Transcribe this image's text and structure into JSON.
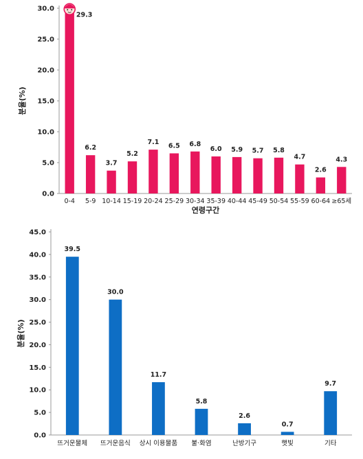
{
  "chart_data": [
    {
      "type": "bar",
      "xlabel": "연령구간",
      "ylabel": "분율(%)",
      "ylim": [
        0,
        30
      ],
      "yticks": [
        "0.0",
        "5.0",
        "10.0",
        "15.0",
        "20.0",
        "25.0",
        "30.0"
      ],
      "color": "#E8175D",
      "categories": [
        "0-4",
        "5-9",
        "10-14",
        "15-19",
        "20-24",
        "25-29",
        "30-34",
        "35-39",
        "40-44",
        "45-49",
        "50-54",
        "55-59",
        "60-64",
        "≥65세"
      ],
      "values": [
        29.3,
        6.2,
        3.7,
        5.2,
        7.1,
        6.5,
        6.8,
        6.0,
        5.9,
        5.7,
        5.8,
        4.7,
        2.6,
        4.3
      ],
      "value_labels": [
        "29.3",
        "6.2",
        "3.7",
        "5.2",
        "7.1",
        "6.5",
        "6.8",
        "6.0",
        "5.9",
        "5.7",
        "5.8",
        "4.7",
        "2.6",
        "4.3"
      ],
      "marker_icon": "baby-face-icon",
      "grid": false
    },
    {
      "type": "bar",
      "xlabel": "",
      "ylabel": "분율(%)",
      "ylim": [
        0,
        45
      ],
      "yticks": [
        "0.0",
        "5.0",
        "10.0",
        "15.0",
        "20.0",
        "25.0",
        "30.0",
        "35.0",
        "40.0",
        "45.0"
      ],
      "color": "#0E6EC5",
      "categories": [
        "뜨거운물체",
        "뜨거운음식",
        "상시 이용물품",
        "불·화염",
        "난방기구",
        "햇빛",
        "기타"
      ],
      "values": [
        39.5,
        30.0,
        11.7,
        5.8,
        2.6,
        0.7,
        9.7
      ],
      "value_labels": [
        "39.5",
        "30.0",
        "11.7",
        "5.8",
        "2.6",
        "0.7",
        "9.7"
      ],
      "grid": false
    }
  ]
}
